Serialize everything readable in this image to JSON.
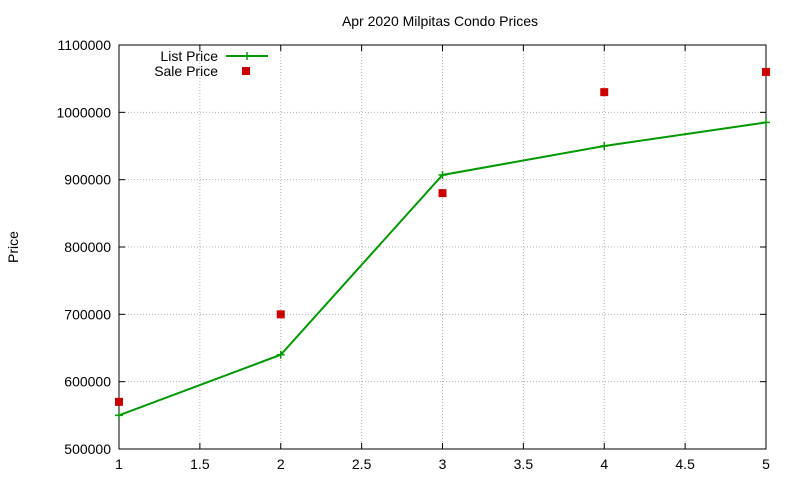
{
  "chart_data": {
    "type": "line",
    "title": "Apr 2020 Milpitas Condo Prices",
    "xlabel": "",
    "ylabel": "Price",
    "xlim": [
      1,
      5
    ],
    "ylim": [
      500000,
      1100000
    ],
    "xticks": [
      "1",
      "1.5",
      "2",
      "2.5",
      "3",
      "3.5",
      "4",
      "4.5",
      "5"
    ],
    "xtick_values": [
      1,
      1.5,
      2,
      2.5,
      3,
      3.5,
      4,
      4.5,
      5
    ],
    "yticks": [
      "500000",
      "600000",
      "700000",
      "800000",
      "900000",
      "1000000",
      "1100000"
    ],
    "ytick_values": [
      500000,
      600000,
      700000,
      800000,
      900000,
      1000000,
      1100000
    ],
    "grid": true,
    "legend_position": "top-left",
    "series": [
      {
        "name": "List Price",
        "style": "line-with-plus-markers",
        "color": "#009900",
        "x": [
          1,
          2,
          3,
          4,
          5
        ],
        "y": [
          550000,
          640000,
          907000,
          950000,
          985000
        ]
      },
      {
        "name": "Sale Price",
        "style": "square-markers",
        "color": "#cc0000",
        "x": [
          1,
          2,
          3,
          4,
          5
        ],
        "y": [
          570000,
          700000,
          880000,
          1030000,
          1060000
        ]
      }
    ]
  }
}
